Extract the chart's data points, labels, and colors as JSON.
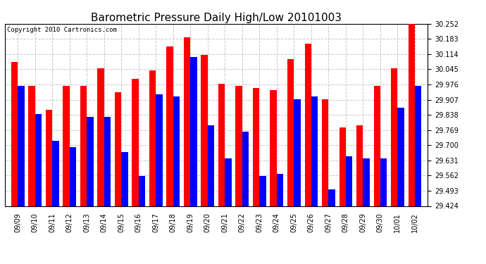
{
  "title": "Barometric Pressure Daily High/Low 20101003",
  "copyright": "Copyright 2010 Cartronics.com",
  "dates": [
    "09/09",
    "09/10",
    "09/11",
    "09/12",
    "09/13",
    "09/14",
    "09/15",
    "09/16",
    "09/17",
    "09/18",
    "09/19",
    "09/20",
    "09/21",
    "09/22",
    "09/23",
    "09/24",
    "09/25",
    "09/26",
    "09/27",
    "09/28",
    "09/29",
    "09/30",
    "10/01",
    "10/02"
  ],
  "highs": [
    30.08,
    29.97,
    29.86,
    29.97,
    29.97,
    30.05,
    29.94,
    30.0,
    30.04,
    30.15,
    30.19,
    30.11,
    29.98,
    29.97,
    29.96,
    29.95,
    30.09,
    30.16,
    29.91,
    29.78,
    29.79,
    29.97,
    30.05,
    30.25
  ],
  "lows": [
    29.97,
    29.84,
    29.72,
    29.69,
    29.83,
    29.83,
    29.67,
    29.56,
    29.93,
    29.92,
    30.1,
    29.79,
    29.64,
    29.76,
    29.56,
    29.57,
    29.91,
    29.92,
    29.5,
    29.65,
    29.64,
    29.64,
    29.87,
    29.97
  ],
  "ymin": 29.424,
  "ymax": 30.252,
  "yticks": [
    29.424,
    29.493,
    29.562,
    29.631,
    29.7,
    29.769,
    29.838,
    29.907,
    29.976,
    30.045,
    30.114,
    30.183,
    30.252
  ],
  "high_color": "#ff0000",
  "low_color": "#0000ff",
  "bg_color": "#ffffff",
  "grid_color": "#c8c8c8",
  "bar_width": 0.38,
  "title_fontsize": 11,
  "tick_fontsize": 7,
  "copyright_fontsize": 6.5
}
